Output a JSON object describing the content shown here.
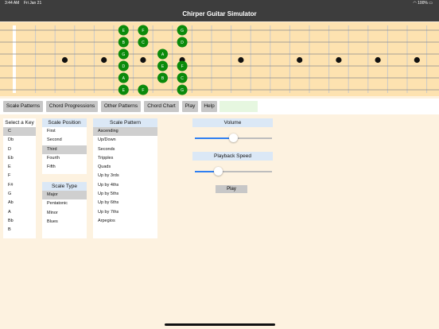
{
  "status": {
    "time": "3:44 AM",
    "date": "Fri Jan 21",
    "battery": "100%"
  },
  "app": {
    "title": "Chirper Guitar Simulator"
  },
  "fretboard": {
    "notes": [
      {
        "label": "E",
        "string": 0,
        "fret": 6
      },
      {
        "label": "F",
        "string": 0,
        "fret": 7
      },
      {
        "label": "G",
        "string": 0,
        "fret": 9
      },
      {
        "label": "B",
        "string": 1,
        "fret": 6
      },
      {
        "label": "C",
        "string": 1,
        "fret": 7
      },
      {
        "label": "D",
        "string": 1,
        "fret": 9
      },
      {
        "label": "G",
        "string": 2,
        "fret": 6
      },
      {
        "label": "A",
        "string": 2,
        "fret": 8
      },
      {
        "label": "D",
        "string": 3,
        "fret": 6
      },
      {
        "label": "E",
        "string": 3,
        "fret": 8
      },
      {
        "label": "F",
        "string": 3,
        "fret": 9
      },
      {
        "label": "A",
        "string": 4,
        "fret": 6
      },
      {
        "label": "B",
        "string": 4,
        "fret": 8
      },
      {
        "label": "C",
        "string": 4,
        "fret": 9
      },
      {
        "label": "E",
        "string": 5,
        "fret": 6
      },
      {
        "label": "F",
        "string": 5,
        "fret": 7
      },
      {
        "label": "G",
        "string": 5,
        "fret": 9
      }
    ],
    "note_color": "#0b8a0b"
  },
  "toolbar": {
    "scale_patterns": "Scale Patterns",
    "chord_progressions": "Chord Progressions",
    "other_patterns": "Other Patterns",
    "chord_chart": "Chord Chart",
    "play": "Play",
    "help": "Help"
  },
  "key": {
    "header": "Select a Key",
    "items": [
      "C",
      "Db",
      "D",
      "Eb",
      "E",
      "F",
      "F#",
      "G",
      "Ab",
      "A",
      "Bb",
      "B"
    ],
    "selected": 0
  },
  "position": {
    "header": "Scale Position",
    "items": [
      "First",
      "Second",
      "Third",
      "Fourth",
      "Fifth"
    ],
    "selected": 2
  },
  "scale_type": {
    "header": "Scale Type",
    "items": [
      "Major",
      "Pentatonic",
      "Minor",
      "Blues"
    ],
    "selected": 0
  },
  "pattern": {
    "header": "Scale Pattern",
    "items": [
      "Ascending",
      "Up/Down",
      "Seconds",
      "Tripples",
      "Quads",
      "Up by 3rds",
      "Up by 4ths",
      "Up by 5ths",
      "Up by 6ths",
      "Up by 7ths",
      "Arpegios"
    ],
    "selected": 0
  },
  "volume": {
    "label": "Volume",
    "value": 0.5
  },
  "speed": {
    "label": "Playback Speed",
    "value": 0.3
  },
  "play_button": "Play",
  "colors": {
    "accent": "#2f7ff1",
    "header_bg": "#dbe8f6",
    "selected": "#cfcfcf",
    "bar": "#3d3d3d"
  }
}
